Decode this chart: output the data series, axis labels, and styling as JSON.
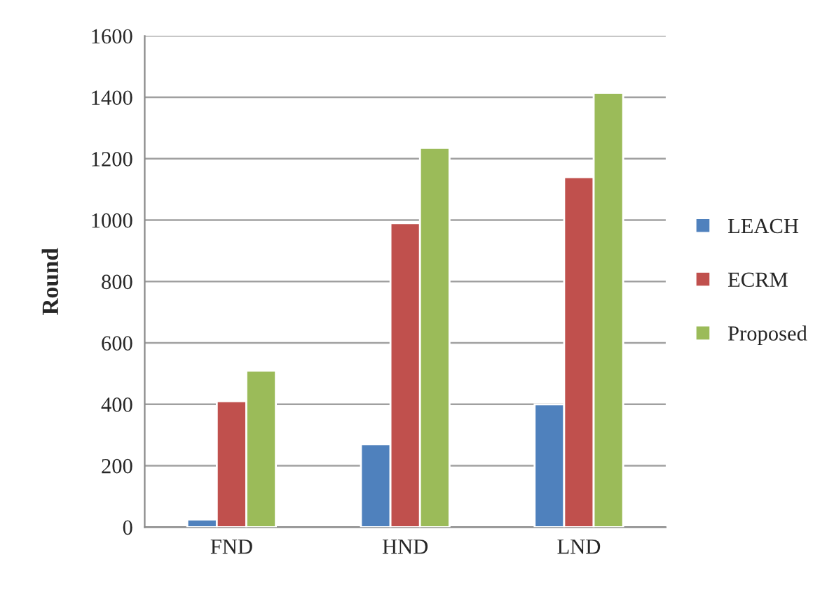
{
  "chart_data": {
    "type": "bar",
    "ylabel": "Round",
    "categories": [
      "FND",
      "HND",
      "LND"
    ],
    "series": [
      {
        "name": "LEACH",
        "color": "#4f81bd",
        "values": [
          25,
          270,
          400
        ]
      },
      {
        "name": "ECRM",
        "color": "#c0504d",
        "values": [
          410,
          990,
          1140
        ]
      },
      {
        "name": "Proposed",
        "color": "#9bbb59",
        "values": [
          510,
          1235,
          1415
        ]
      }
    ],
    "ylim": [
      0,
      1600
    ],
    "yticks": [
      0,
      200,
      400,
      600,
      800,
      1000,
      1200,
      1400,
      1600
    ],
    "grid": "y",
    "legend": "right"
  }
}
